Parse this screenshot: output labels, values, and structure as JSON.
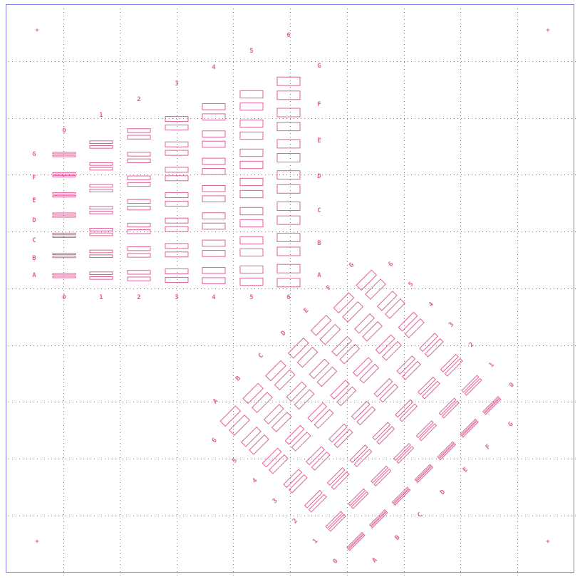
{
  "colors": {
    "frame": "#7a7ae6",
    "grid": "#4a4a4a",
    "pattern": "#e0609a",
    "background": "#ffffff"
  },
  "markers": {
    "glyph": "+",
    "icon": "crosshair-icon"
  },
  "array_straight": {
    "columns": [
      "0",
      "1",
      "2",
      "3",
      "4",
      "5",
      "6"
    ],
    "rows": [
      "A",
      "B",
      "C",
      "D",
      "E",
      "F",
      "G"
    ]
  },
  "array_rotated": {
    "columns": [
      "0",
      "1",
      "2",
      "3",
      "4",
      "5",
      "6"
    ],
    "rows": [
      "A",
      "B",
      "C",
      "D",
      "E",
      "F",
      "G"
    ]
  }
}
